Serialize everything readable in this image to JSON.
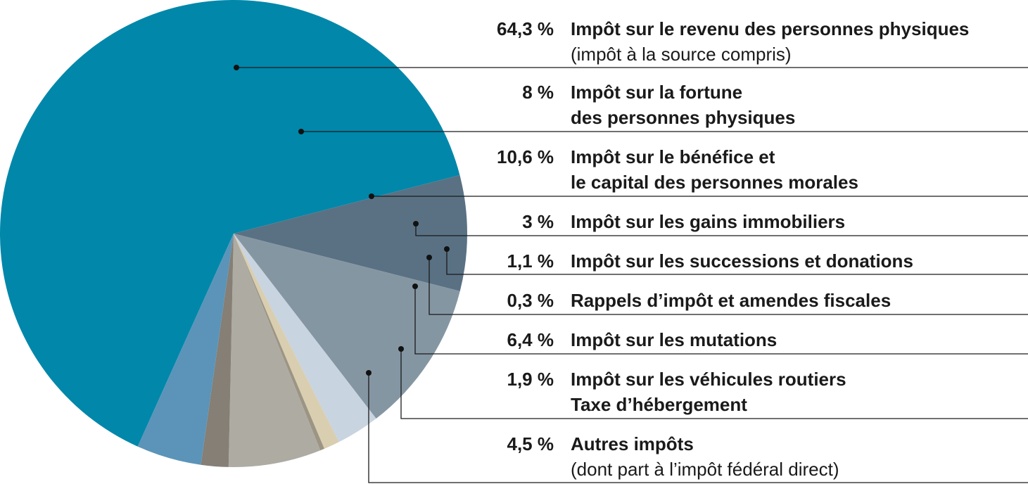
{
  "chart_data": {
    "type": "pie",
    "title": "",
    "unit": "%",
    "slices": [
      {
        "percent_label": "64,3 %",
        "value": 64.3,
        "lines": [
          "Impôt sur le revenu des personnes physiques",
          "(impôt à la source compris)"
        ],
        "color": "#0087aa"
      },
      {
        "percent_label": "8 %",
        "value": 8,
        "lines": [
          "Impôt sur la fortune",
          "des personnes physiques"
        ],
        "color": "#5a7184"
      },
      {
        "percent_label": "10,6 %",
        "value": 10.6,
        "lines": [
          "Impôt sur le bénéfice et",
          "le capital des personnes morales"
        ],
        "color": "#8596a3"
      },
      {
        "percent_label": "3 %",
        "value": 3,
        "lines": [
          "Impôt sur les gains immobiliers"
        ],
        "color": "#c8d4e0"
      },
      {
        "percent_label": "1,1 %",
        "value": 1.1,
        "lines": [
          "Impôt sur les successions et donations"
        ],
        "color": "#d9ceb0"
      },
      {
        "percent_label": "0,3 %",
        "value": 0.3,
        "lines": [
          "Rappels d’impôt et amendes fiscales"
        ],
        "color": "#9c9584"
      },
      {
        "percent_label": "6,4 %",
        "value": 6.4,
        "lines": [
          "Impôt sur les mutations"
        ],
        "color": "#aeaba3"
      },
      {
        "percent_label": "1,9 %",
        "value": 1.9,
        "lines": [
          "Impôt sur les véhicules routiers",
          "Taxe d’hébergement"
        ],
        "color": "#857f76"
      },
      {
        "percent_label": "4,5 %",
        "value": 4.5,
        "lines": [
          "Autres impôts",
          "(dont part à l’impôt fédéral direct)"
        ],
        "color": "#5b94b8"
      }
    ]
  }
}
